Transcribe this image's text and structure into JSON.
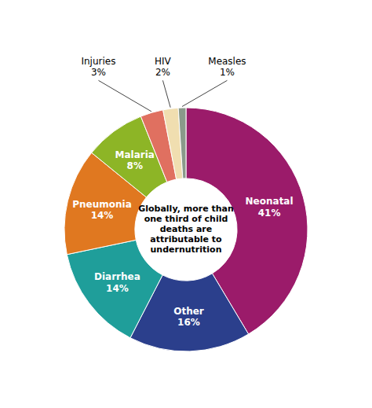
{
  "chart_data": {
    "type": "donut",
    "categories": [
      "Neonatal",
      "Other",
      "Diarrhea",
      "Pneumonia",
      "Malaria",
      "Injuries",
      "HIV",
      "Measles"
    ],
    "values": [
      41,
      16,
      14,
      14,
      8,
      3,
      2,
      1
    ],
    "value_labels": [
      "41%",
      "16%",
      "14%",
      "14%",
      "8%",
      "3%",
      "2%",
      "1%"
    ],
    "colors": [
      "#9B1B6A",
      "#2B3F8C",
      "#1F9E9A",
      "#E07820",
      "#8DB526",
      "#E07060",
      "#F0DEB0",
      "#8A9A8A"
    ],
    "annotation": "Globally, more than\none third of child\ndeaths are\nattributable to\nundernutrition",
    "data_labels": true
  }
}
